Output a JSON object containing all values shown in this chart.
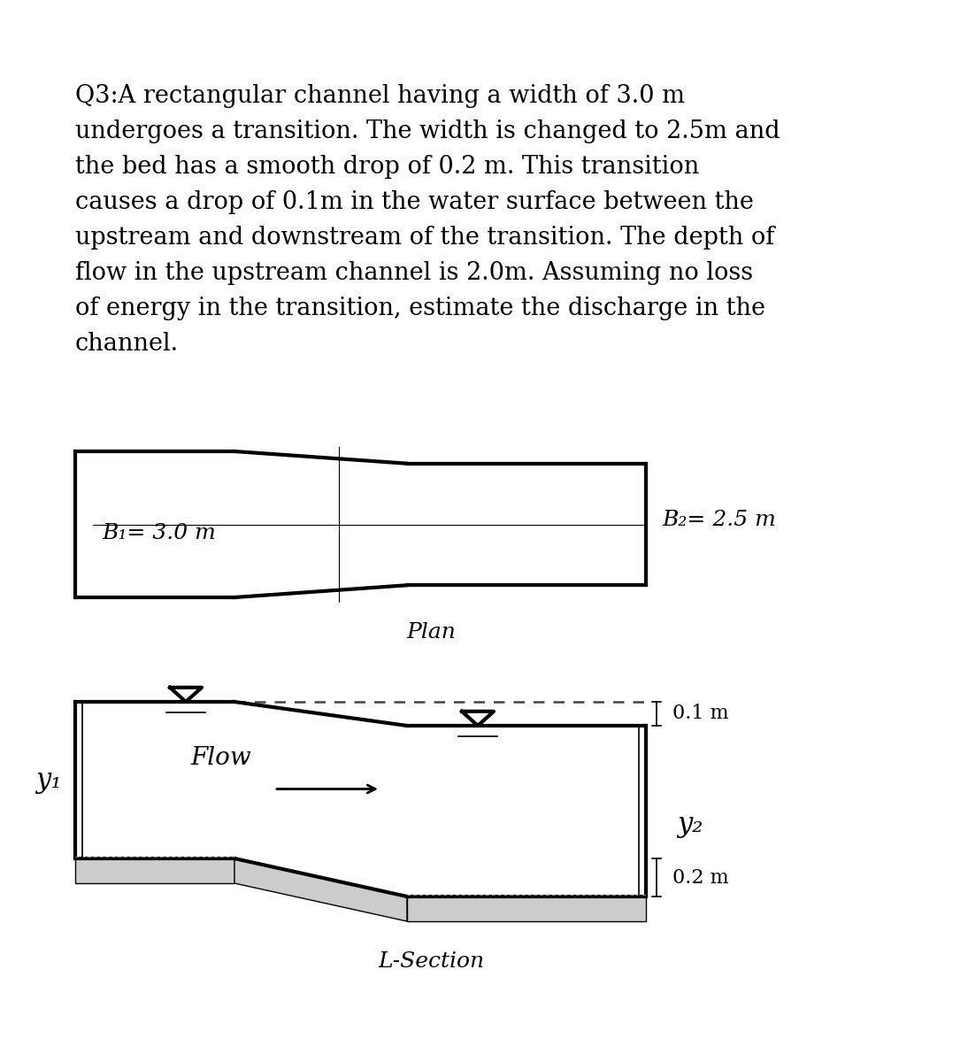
{
  "question_text": "Q3:A rectangular channel having a width of 3.0 m\nundergoes a transition. The width is changed to 2.5m and\nthe bed has a smooth drop of 0.2 m. This transition\ncauses a drop of 0.1m in the water surface between the\nupstream and downstream of the transition. The depth of\nflow in the upstream channel is 2.0m. Assuming no loss\nof energy in the transition, estimate the discharge in the\nchannel.",
  "plan_label": "Plan",
  "lsection_label": "L-Section",
  "b1_label": "B₁= 3.0 m",
  "b2_label": "B₂= 2.5 m",
  "y1_label": "y₁",
  "y2_label": "y₂",
  "flow_label": "Flow",
  "drop_01_label": "0.1 m",
  "drop_02_label": "0.2 m",
  "bg_color": "#ffffff",
  "line_color": "#000000"
}
